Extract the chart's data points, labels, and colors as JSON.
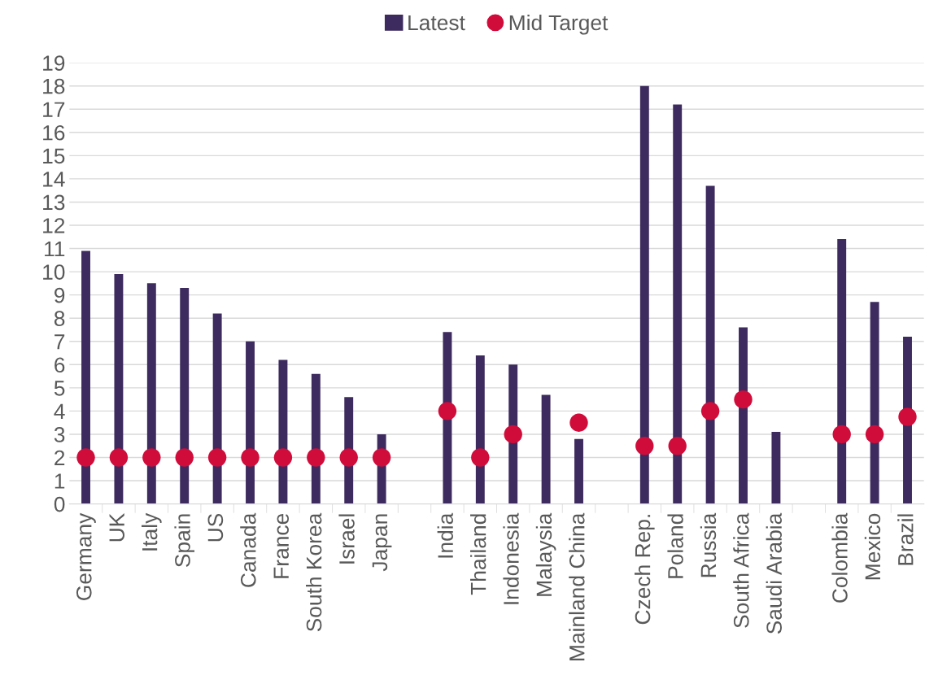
{
  "chart_data": {
    "type": "bar",
    "categories": [
      "Germany",
      "UK",
      "Italy",
      "Spain",
      "US",
      "Canada",
      "France",
      "South Korea",
      "Israel",
      "Japan",
      null,
      "India",
      "Thailand",
      "Indonesia",
      "Malaysia",
      "Mainland China",
      null,
      "Czech Rep.",
      "Poland",
      "Russia",
      "South Africa",
      "Saudi Arabia",
      null,
      "Colombia",
      "Mexico",
      "Brazil"
    ],
    "series": [
      {
        "name": "Latest",
        "color": "#3d2a5e",
        "values": [
          10.9,
          9.9,
          9.5,
          9.3,
          8.2,
          7.0,
          6.2,
          5.6,
          4.6,
          3.0,
          null,
          7.4,
          6.4,
          6.0,
          4.7,
          2.8,
          null,
          18.0,
          17.2,
          13.7,
          7.6,
          3.1,
          null,
          11.4,
          8.7,
          7.2
        ]
      },
      {
        "name": "Mid Target",
        "type": "scatter",
        "color": "#d00c3b",
        "values": [
          2,
          2,
          2,
          2,
          2,
          2,
          2,
          2,
          2,
          2,
          null,
          4,
          2,
          3,
          null,
          3.5,
          null,
          2.5,
          2.5,
          4,
          4.5,
          null,
          null,
          3,
          3,
          3.75
        ]
      }
    ],
    "ylim": [
      0,
      19
    ],
    "yticks": [
      0,
      1,
      2,
      3,
      4,
      5,
      6,
      7,
      8,
      9,
      10,
      11,
      12,
      13,
      14,
      15,
      16,
      17,
      18,
      19
    ],
    "grid": "y",
    "legend": "top",
    "marker": "circle"
  }
}
